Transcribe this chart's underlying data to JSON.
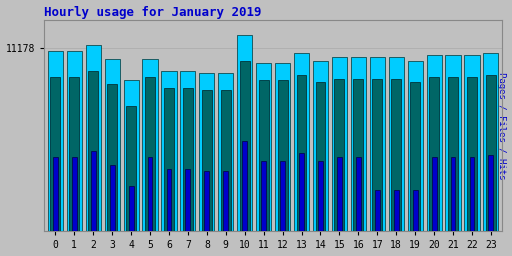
{
  "title": "Hourly usage for January 2019",
  "hours": [
    0,
    1,
    2,
    3,
    4,
    5,
    6,
    7,
    8,
    9,
    10,
    11,
    12,
    13,
    14,
    15,
    16,
    17,
    18,
    19,
    20,
    21,
    22,
    23
  ],
  "hits": [
    0.92,
    0.92,
    0.95,
    0.88,
    0.77,
    0.88,
    0.82,
    0.82,
    0.81,
    0.81,
    1.0,
    0.86,
    0.86,
    0.91,
    0.87,
    0.89,
    0.89,
    0.89,
    0.89,
    0.87,
    0.9,
    0.9,
    0.9,
    0.91
  ],
  "files": [
    0.79,
    0.79,
    0.82,
    0.75,
    0.64,
    0.79,
    0.73,
    0.73,
    0.72,
    0.72,
    0.87,
    0.77,
    0.77,
    0.8,
    0.76,
    0.78,
    0.78,
    0.78,
    0.78,
    0.76,
    0.79,
    0.79,
    0.79,
    0.8
  ],
  "pages": [
    0.38,
    0.38,
    0.41,
    0.34,
    0.23,
    0.38,
    0.32,
    0.32,
    0.31,
    0.31,
    0.46,
    0.36,
    0.36,
    0.4,
    0.36,
    0.38,
    0.38,
    0.21,
    0.21,
    0.21,
    0.38,
    0.38,
    0.38,
    0.39
  ],
  "ymax": 1.08,
  "ytick_label": "11178",
  "ytick_val": 0.935,
  "color_hits": "#00CCFF",
  "color_files": "#006666",
  "color_pages": "#0000CC",
  "bg_color": "#C0C0C0",
  "plot_bg": "#C0C0C0",
  "bar_width": 0.8,
  "ylabel": "Pages / Files / Hits",
  "title_color": "#0000CC",
  "ylabel_color": "#0000CC"
}
